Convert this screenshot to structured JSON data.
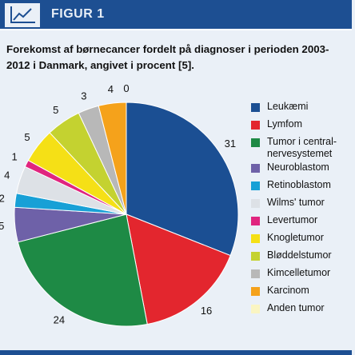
{
  "header": {
    "figure_label": "FIGUR 1",
    "icon": "line-chart-icon",
    "background_color": "#1d4f92"
  },
  "chart_data": {
    "type": "pie",
    "title": "Forekomst af børnecancer fordelt på diagnoser i perioden 2003-2012 i Danmark, angivet i procent [5].",
    "categories": [
      "Leukæmi",
      "Lymfom",
      "Tumor i central-\nnervesystemet",
      "Neuroblastom",
      "Retinoblastom",
      "Wilms' tumor",
      "Levertumor",
      "Knogletumor",
      "Bløddelstumor",
      "Kimcelletumor",
      "Karcinom",
      "Anden tumor"
    ],
    "values": [
      31,
      16,
      24,
      5,
      2,
      4,
      1,
      5,
      5,
      3,
      4,
      0
    ],
    "value_labels": [
      "31",
      "16",
      "24",
      "5",
      "2",
      "4",
      "1",
      "5",
      "5",
      "3",
      "4",
      "0"
    ],
    "colors": [
      "#1b4f93",
      "#e3262e",
      "#1e8a45",
      "#6e61a8",
      "#18a0d6",
      "#dde1e6",
      "#e0257f",
      "#f5e016",
      "#c4d230",
      "#b8b8b8",
      "#f5a21b",
      "#faf5c2"
    ],
    "start_angle_deg": 0,
    "direction": "clockwise",
    "legend_position": "right"
  }
}
